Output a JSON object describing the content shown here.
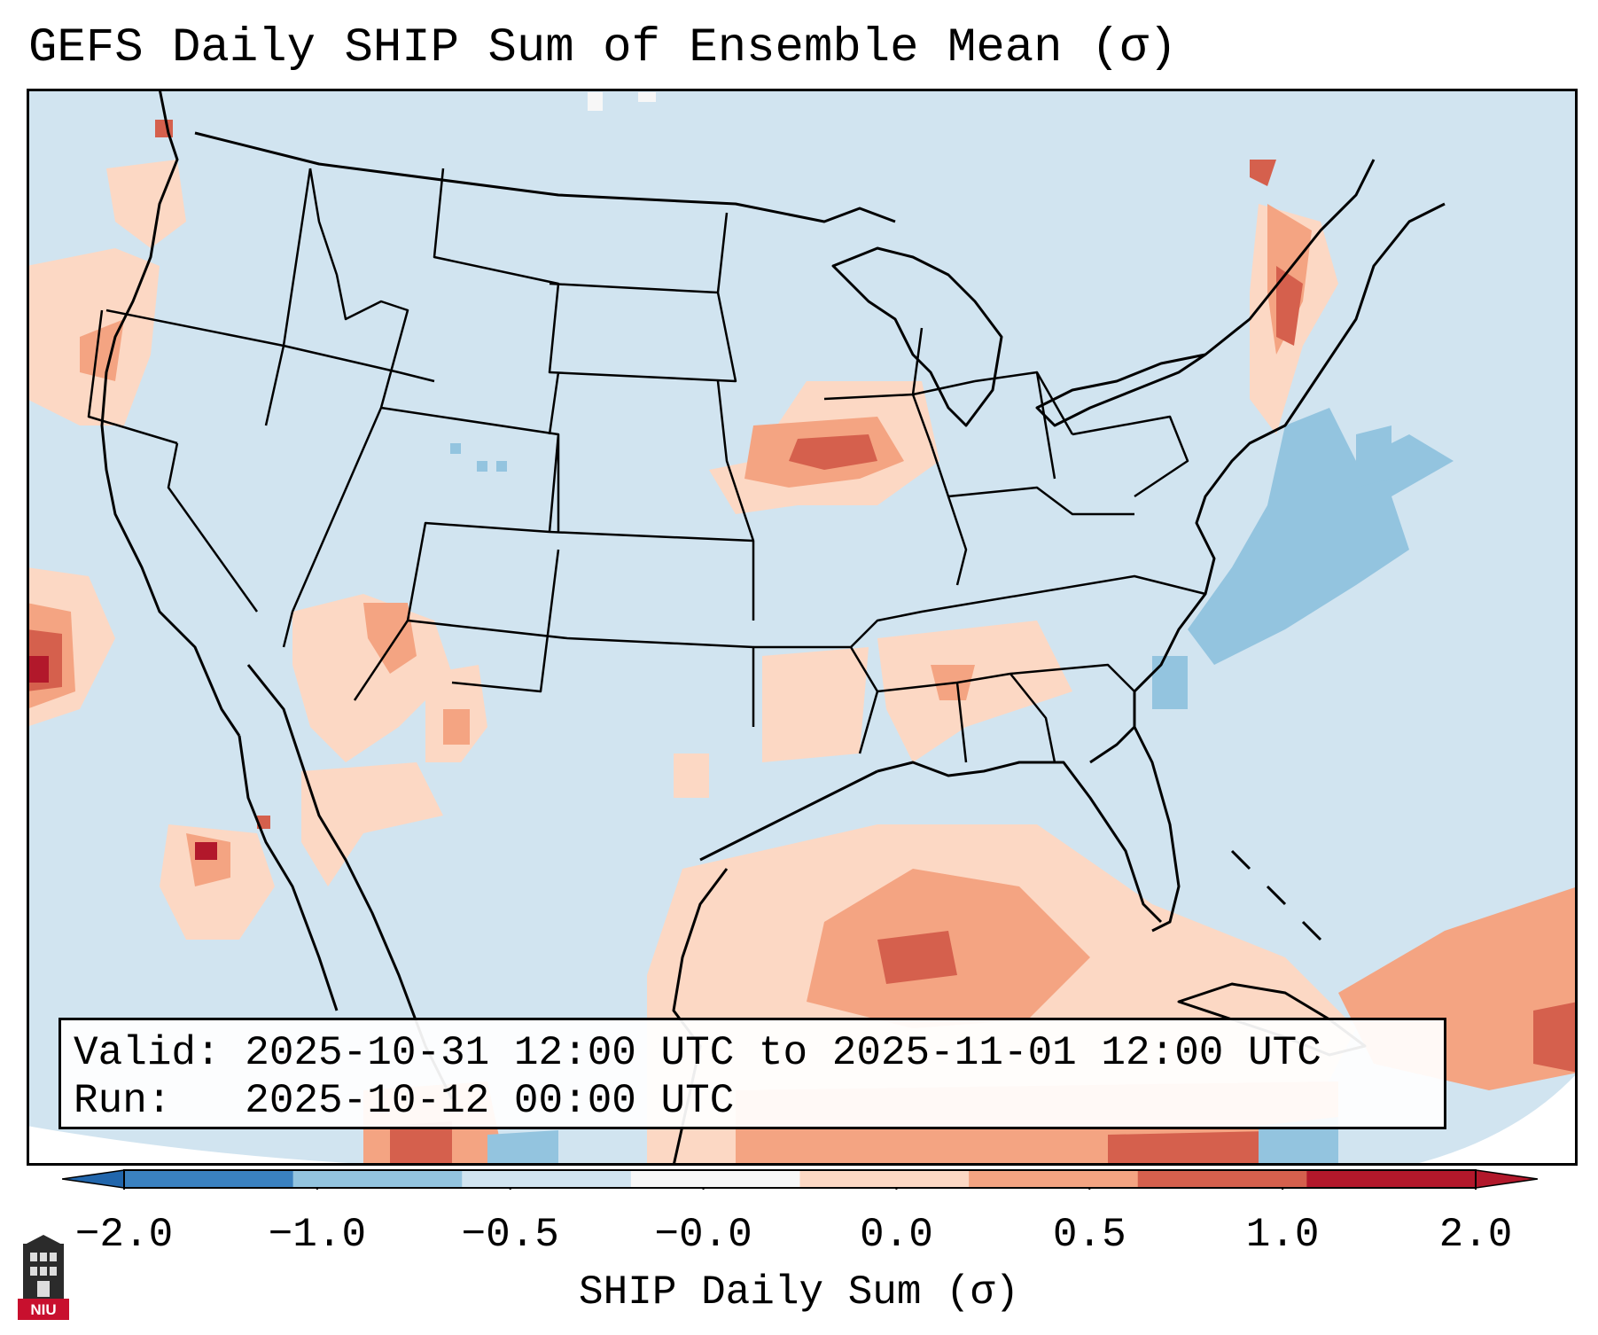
{
  "title": "GEFS Daily SHIP Sum of Ensemble Mean (σ)",
  "info": {
    "valid": "Valid: 2025-10-31 12:00 UTC to 2025-11-01 12:00 UTC",
    "run": "Run:   2025-10-12 00:00 UTC"
  },
  "colorbar": {
    "label": "SHIP Daily Sum (σ)",
    "ticks": [
      "−2.0",
      "−1.0",
      "−0.5",
      "−0.0",
      "0.0",
      "0.5",
      "1.0",
      "2.0"
    ],
    "colors": [
      "#3a81c0",
      "#93c4df",
      "#d1e4f0",
      "#f7f7f7",
      "#fcd8c4",
      "#f4a482",
      "#d5604d",
      "#b2182b"
    ],
    "extend_low": "#2166ac",
    "extend_high": "#b2182b"
  },
  "map": {
    "background": "#d1e4f0",
    "region": "Contiguous United States"
  },
  "logo": {
    "text": "NIU",
    "color": "#c8102e"
  }
}
